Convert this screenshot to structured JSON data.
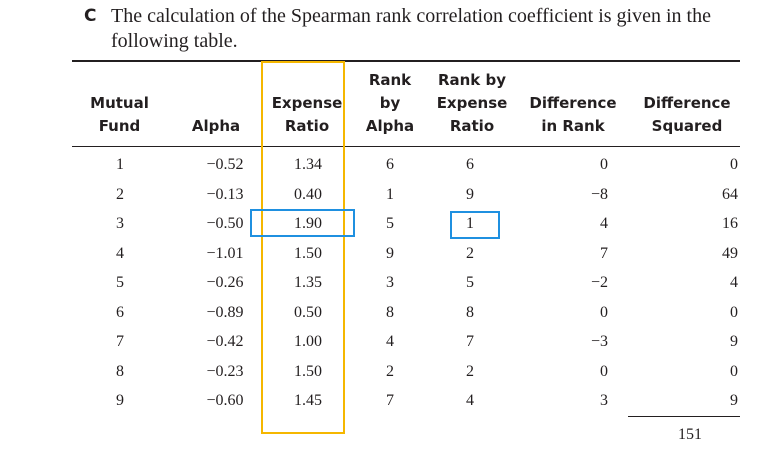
{
  "section_letter": "C",
  "intro_text": "The calculation of the Spearman rank correlation coefficient is given in the following table.",
  "table": {
    "headers": {
      "fund": [
        "Mutual",
        "Fund"
      ],
      "alpha": [
        "Alpha"
      ],
      "expense": [
        "Expense",
        "Ratio"
      ],
      "rank_alpha": [
        "Rank",
        "by",
        "Alpha"
      ],
      "rank_expense": [
        "Rank by",
        "Expense",
        "Ratio"
      ],
      "diff": [
        "Difference",
        "in Rank"
      ],
      "diff_sq": [
        "Difference",
        "Squared"
      ]
    },
    "rows": [
      [
        "1",
        "−0.52",
        "1.34",
        "6",
        "6",
        "0",
        "0"
      ],
      [
        "2",
        "−0.13",
        "0.40",
        "1",
        "9",
        "−8",
        "64"
      ],
      [
        "3",
        "−0.50",
        "1.90",
        "5",
        "1",
        "4",
        "16"
      ],
      [
        "4",
        "−1.01",
        "1.50",
        "9",
        "2",
        "7",
        "49"
      ],
      [
        "5",
        "−0.26",
        "1.35",
        "3",
        "5",
        "−2",
        "4"
      ],
      [
        "6",
        "−0.89",
        "0.50",
        "8",
        "8",
        "0",
        "0"
      ],
      [
        "7",
        "−0.42",
        "1.00",
        "4",
        "7",
        "−3",
        "9"
      ],
      [
        "8",
        "−0.23",
        "1.50",
        "2",
        "2",
        "0",
        "0"
      ],
      [
        "9",
        "−0.60",
        "1.45",
        "7",
        "4",
        "3",
        "9"
      ]
    ],
    "total": "151"
  },
  "highlight_colors": {
    "expense_column": "#f5b700",
    "fund3_cells": "#1f90e0"
  }
}
